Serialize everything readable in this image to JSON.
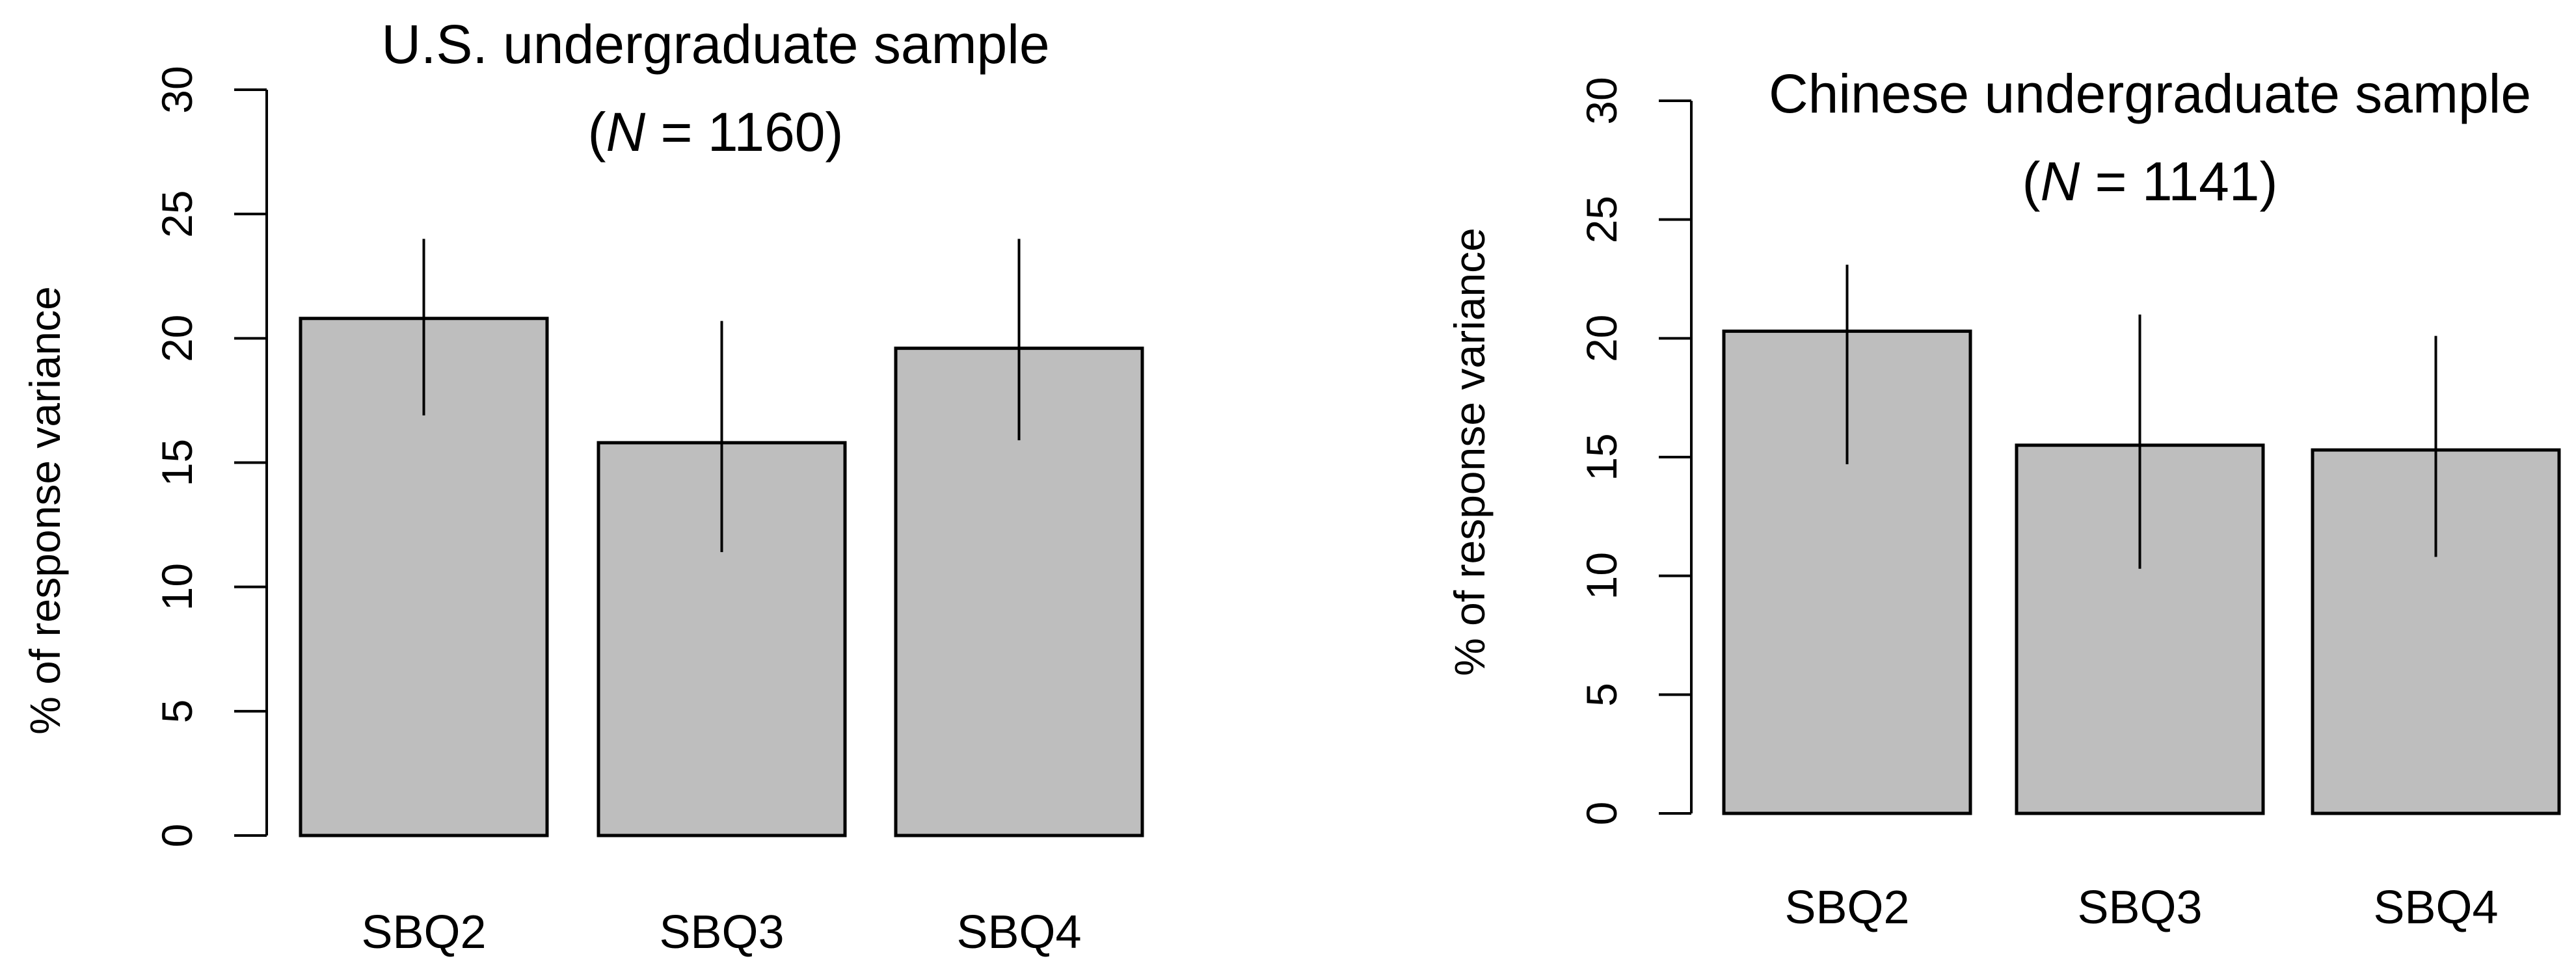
{
  "chart_data": [
    {
      "type": "bar",
      "title": "U.S. undergraduate sample",
      "subtitle": {
        "open": "(",
        "n_symbol": "N",
        "equals": " = ",
        "n_value": "1160",
        "close": ")"
      },
      "ylabel": "% of response variance",
      "xlabel": "",
      "ylim": [
        0,
        30
      ],
      "yticks": [
        0,
        5,
        10,
        15,
        20,
        25,
        30
      ],
      "categories": [
        "SBQ2",
        "SBQ3",
        "SBQ4"
      ],
      "values": [
        20.8,
        15.8,
        19.6
      ],
      "error_low": [
        16.9,
        11.4,
        15.9
      ],
      "error_high": [
        24.0,
        20.7,
        24.0
      ],
      "bar_color": "#bebebe"
    },
    {
      "type": "bar",
      "title": "Chinese undergraduate sample",
      "subtitle": {
        "open": "(",
        "n_symbol": "N",
        "equals": " = ",
        "n_value": "1141",
        "close": ")"
      },
      "ylabel": "% of response variance",
      "xlabel": "",
      "ylim": [
        0,
        30
      ],
      "yticks": [
        0,
        5,
        10,
        15,
        20,
        25,
        30
      ],
      "categories": [
        "SBQ2",
        "SBQ3",
        "SBQ4"
      ],
      "values": [
        20.3,
        15.5,
        15.3
      ],
      "error_low": [
        14.7,
        10.3,
        10.8
      ],
      "error_high": [
        23.1,
        21.0,
        20.1
      ],
      "bar_color": "#bebebe"
    }
  ]
}
